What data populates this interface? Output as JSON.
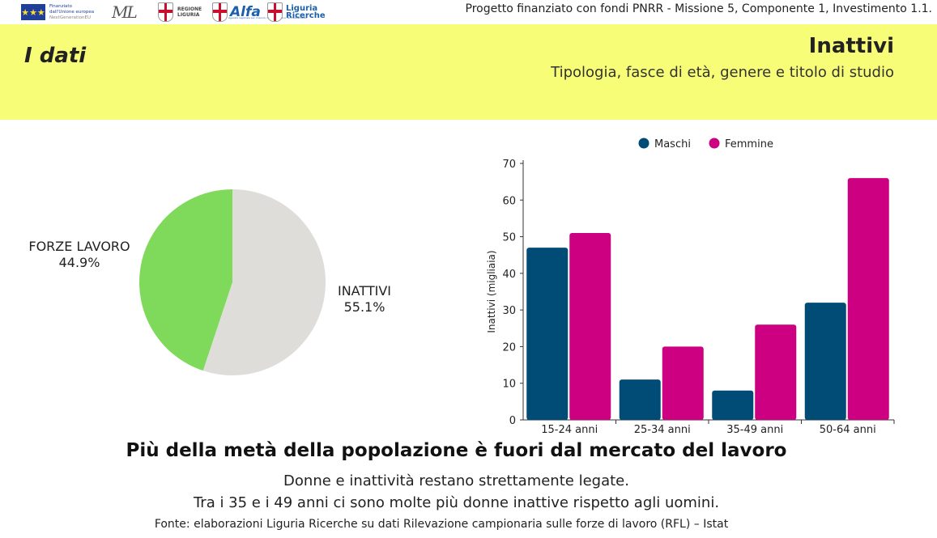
{
  "logos": {
    "eu": {
      "line1": "Finanziato",
      "line2": "dall'Unione europea",
      "line3": "NextGenerationEU",
      "stars": "★★★"
    },
    "ministero": {
      "mark": "ML"
    },
    "regione": {
      "line1": "REGIONE",
      "line2": "LIGURIA"
    },
    "alfa": {
      "name": "Alfa",
      "tagline": "Agenzia regionale per il lavoro, la formazione e l'accreditamento"
    },
    "liguria_ricerche": {
      "line1": "Liguria",
      "line2": "Ricerche"
    }
  },
  "header": {
    "funding_note": "Progetto finanziato con fondi PNRR - Missione 5, Componente 1, Investimento 1.1.",
    "section_title": "I dati",
    "title": "Inattivi",
    "subtitle": "Tipologia, fasce di età, genere e titolo di studio"
  },
  "colors": {
    "band": "#f7fd76",
    "maschi": "#004c77",
    "femmine": "#cc0080",
    "forze_lavoro": "#7fd95a",
    "inattivi": "#deddd9"
  },
  "chart_data": [
    {
      "type": "pie",
      "labels": [
        "FORZE LAVORO",
        "INATTIVI"
      ],
      "values": [
        44.9,
        55.1
      ],
      "value_labels": [
        "44.9%",
        "55.1%"
      ],
      "colors": [
        "#7fd95a",
        "#deddd9"
      ]
    },
    {
      "type": "bar",
      "categories": [
        "15-24 anni",
        "25-34 anni",
        "35-49 anni",
        "50-64 anni"
      ],
      "series": [
        {
          "name": "Maschi",
          "values": [
            47,
            11,
            8,
            32
          ],
          "color": "#004c77"
        },
        {
          "name": "Femmine",
          "values": [
            51,
            20,
            26,
            66
          ],
          "color": "#cc0080"
        }
      ],
      "xlabel": "",
      "ylabel": "Inattivi (migliaia)",
      "ylim": [
        0,
        70
      ],
      "yticks": [
        0,
        10,
        20,
        30,
        40,
        50,
        60,
        70
      ],
      "legend": "top-center"
    }
  ],
  "footer": {
    "headline": "Più della metà della popolazione è fuori dal mercato del lavoro",
    "line1": "Donne e inattività restano strettamente legate.",
    "line2": "Tra i 35 e i 49 anni ci sono molte più donne inattive rispetto agli uomini.",
    "source": "Fonte: elaborazioni Liguria Ricerche su dati Rilevazione campionaria sulle forze di lavoro (RFL) – Istat"
  }
}
